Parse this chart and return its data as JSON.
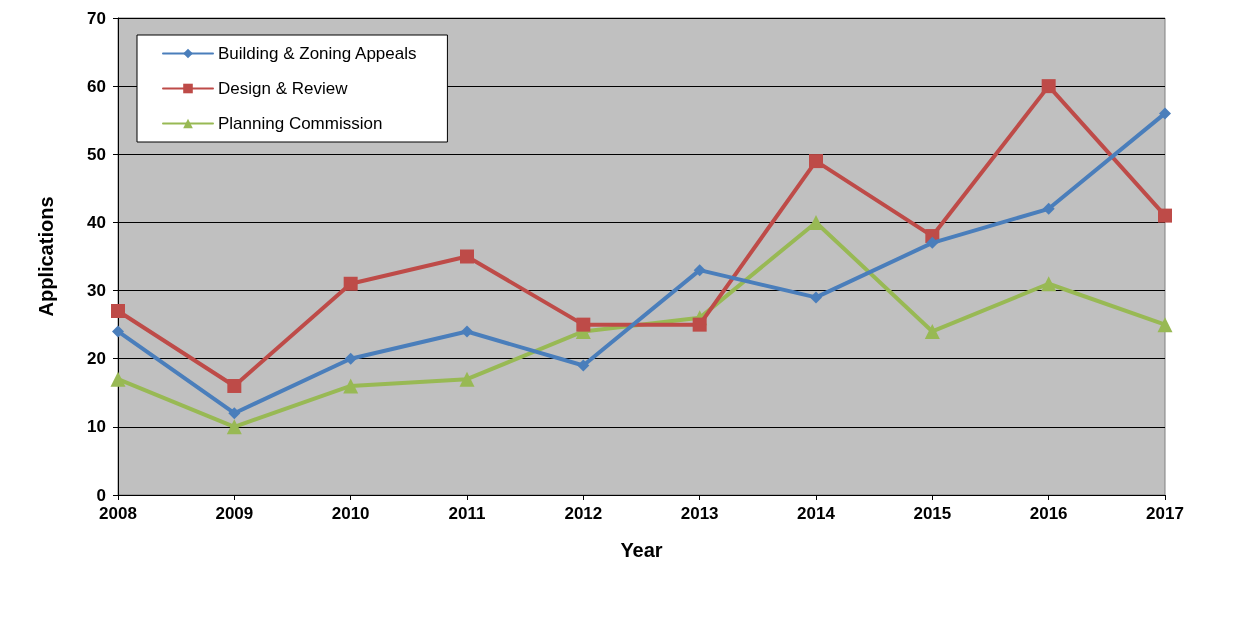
{
  "chart_data": {
    "type": "line",
    "xlabel": "Year",
    "ylabel": "Applications",
    "categories": [
      "2008",
      "2009",
      "2010",
      "2011",
      "2012",
      "2013",
      "2014",
      "2015",
      "2016",
      "2017"
    ],
    "series": [
      {
        "name": "Building & Zoning Appeals",
        "color": "#4a7ebb",
        "marker": "diamond",
        "values": [
          24,
          12,
          20,
          24,
          19,
          33,
          29,
          37,
          42,
          56
        ]
      },
      {
        "name": "Design & Review",
        "color": "#be4b48",
        "marker": "square",
        "values": [
          27,
          16,
          31,
          35,
          25,
          25,
          49,
          38,
          60,
          41
        ]
      },
      {
        "name": "Planning Commission",
        "color": "#98b954",
        "marker": "triangle",
        "values": [
          17,
          10,
          16,
          17,
          24,
          26,
          40,
          24,
          31,
          25
        ]
      }
    ],
    "ylim": [
      0,
      70
    ],
    "yticks": [
      0,
      10,
      20,
      30,
      40,
      50,
      60,
      70
    ],
    "grid": "y",
    "legend": "top left",
    "line_style": "solid"
  }
}
